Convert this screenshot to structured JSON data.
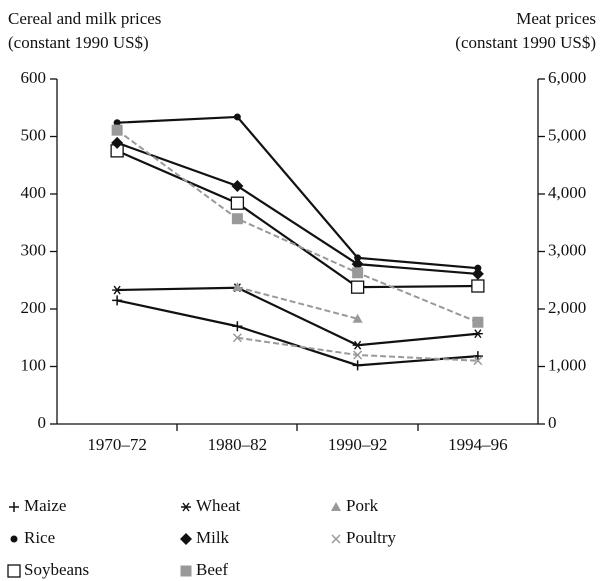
{
  "chart_data": {
    "type": "line",
    "ylabel": [
      "Cereal and milk prices",
      "(constant 1990 US$)"
    ],
    "y2label": [
      "Meat prices",
      "(constant 1990 US$)"
    ],
    "categories": [
      "1970–72",
      "1980–82",
      "1990–92",
      "1994–96"
    ],
    "ylim": [
      0,
      600
    ],
    "yticks": [
      0,
      100,
      200,
      300,
      400,
      500,
      600
    ],
    "y2lim": [
      0,
      6000
    ],
    "y2ticks": [
      0,
      {
        "value": 1000,
        "label": "1,000"
      },
      {
        "value": 2000,
        "label": "2,000"
      },
      {
        "value": 3000,
        "label": "3,000"
      },
      {
        "value": 4000,
        "label": "4,000"
      },
      {
        "value": 5000,
        "label": "5,000"
      },
      {
        "value": 6000,
        "label": "6,000"
      }
    ],
    "series": [
      {
        "name": "Maize",
        "color": "#111111",
        "marker": "plus",
        "values": [
          215,
          170,
          102,
          118
        ]
      },
      {
        "name": "Rice",
        "color": "#111111",
        "marker": "dot",
        "values": [
          524,
          534,
          289,
          271
        ]
      },
      {
        "name": "Soybeans",
        "color": "#111111",
        "marker": "open-square",
        "values": [
          475,
          384,
          238,
          240
        ]
      },
      {
        "name": "Wheat",
        "color": "#111111",
        "marker": "star",
        "values": [
          233,
          237,
          137,
          157
        ]
      },
      {
        "name": "Milk",
        "color": "#111111",
        "marker": "diamond",
        "values": [
          489,
          414,
          278,
          261
        ]
      },
      {
        "name": "Beef",
        "color": "#999999",
        "marker": "square",
        "dash": true,
        "axis": "y2",
        "values": [
          5110,
          3570,
          2630,
          1770
        ]
      },
      {
        "name": "Pork",
        "color": "#999999",
        "marker": "triangle",
        "dash": true,
        "axis": "y2",
        "values": [
          null,
          2380,
          1830,
          null
        ]
      },
      {
        "name": "Poultry",
        "color": "#999999",
        "marker": "cross",
        "dash": true,
        "axis": "y2",
        "values": [
          null,
          1500,
          1200,
          1100
        ]
      }
    ]
  }
}
